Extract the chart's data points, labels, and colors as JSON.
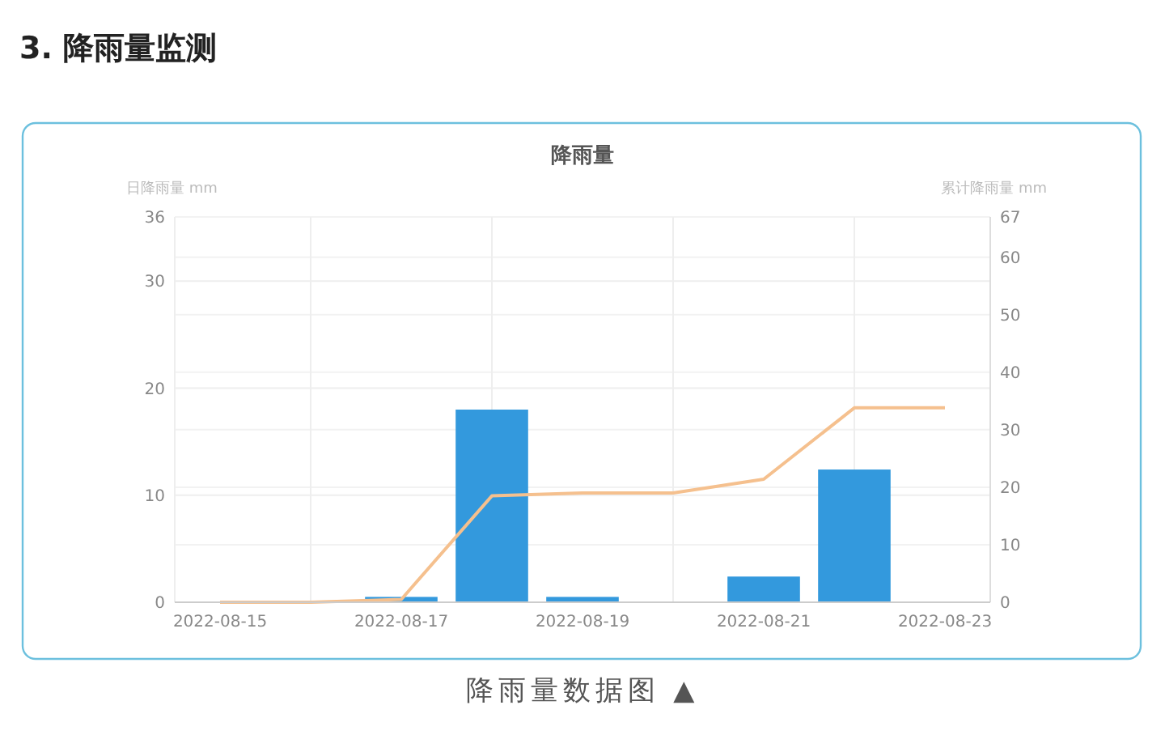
{
  "chart_data": {
    "type": "bar",
    "title": "3. 降雨量监测",
    "subtitle": "降雨量",
    "ylabel": "日降雨量 mm",
    "y2label": "累计降雨量 mm",
    "annotations": [
      "降雨量数据图 ▲"
    ],
    "categories": [
      "2022-08-15",
      null,
      "2022-08-17",
      null,
      "2022-08-19",
      null,
      "2022-08-21",
      null,
      "2022-08-23"
    ],
    "series": [
      {
        "color": "#3399dd",
        "values": [
          0,
          0,
          0.5,
          18,
          0.5,
          0,
          2.4,
          12.4,
          0
        ]
      },
      {
        "type": "line",
        "axis": "y2",
        "color": "#f5c08e",
        "values": [
          0,
          0,
          0.5,
          18.5,
          19,
          19,
          21.4,
          33.8,
          33.8
        ]
      }
    ],
    "ylim": [
      0,
      36
    ],
    "yticks": [
      0,
      10,
      20,
      30,
      36
    ],
    "y2lim": [
      0,
      67
    ],
    "y2ticks": [
      0,
      10,
      20,
      30,
      40,
      50,
      60,
      67
    ],
    "grid": true,
    "marker": "none"
  }
}
